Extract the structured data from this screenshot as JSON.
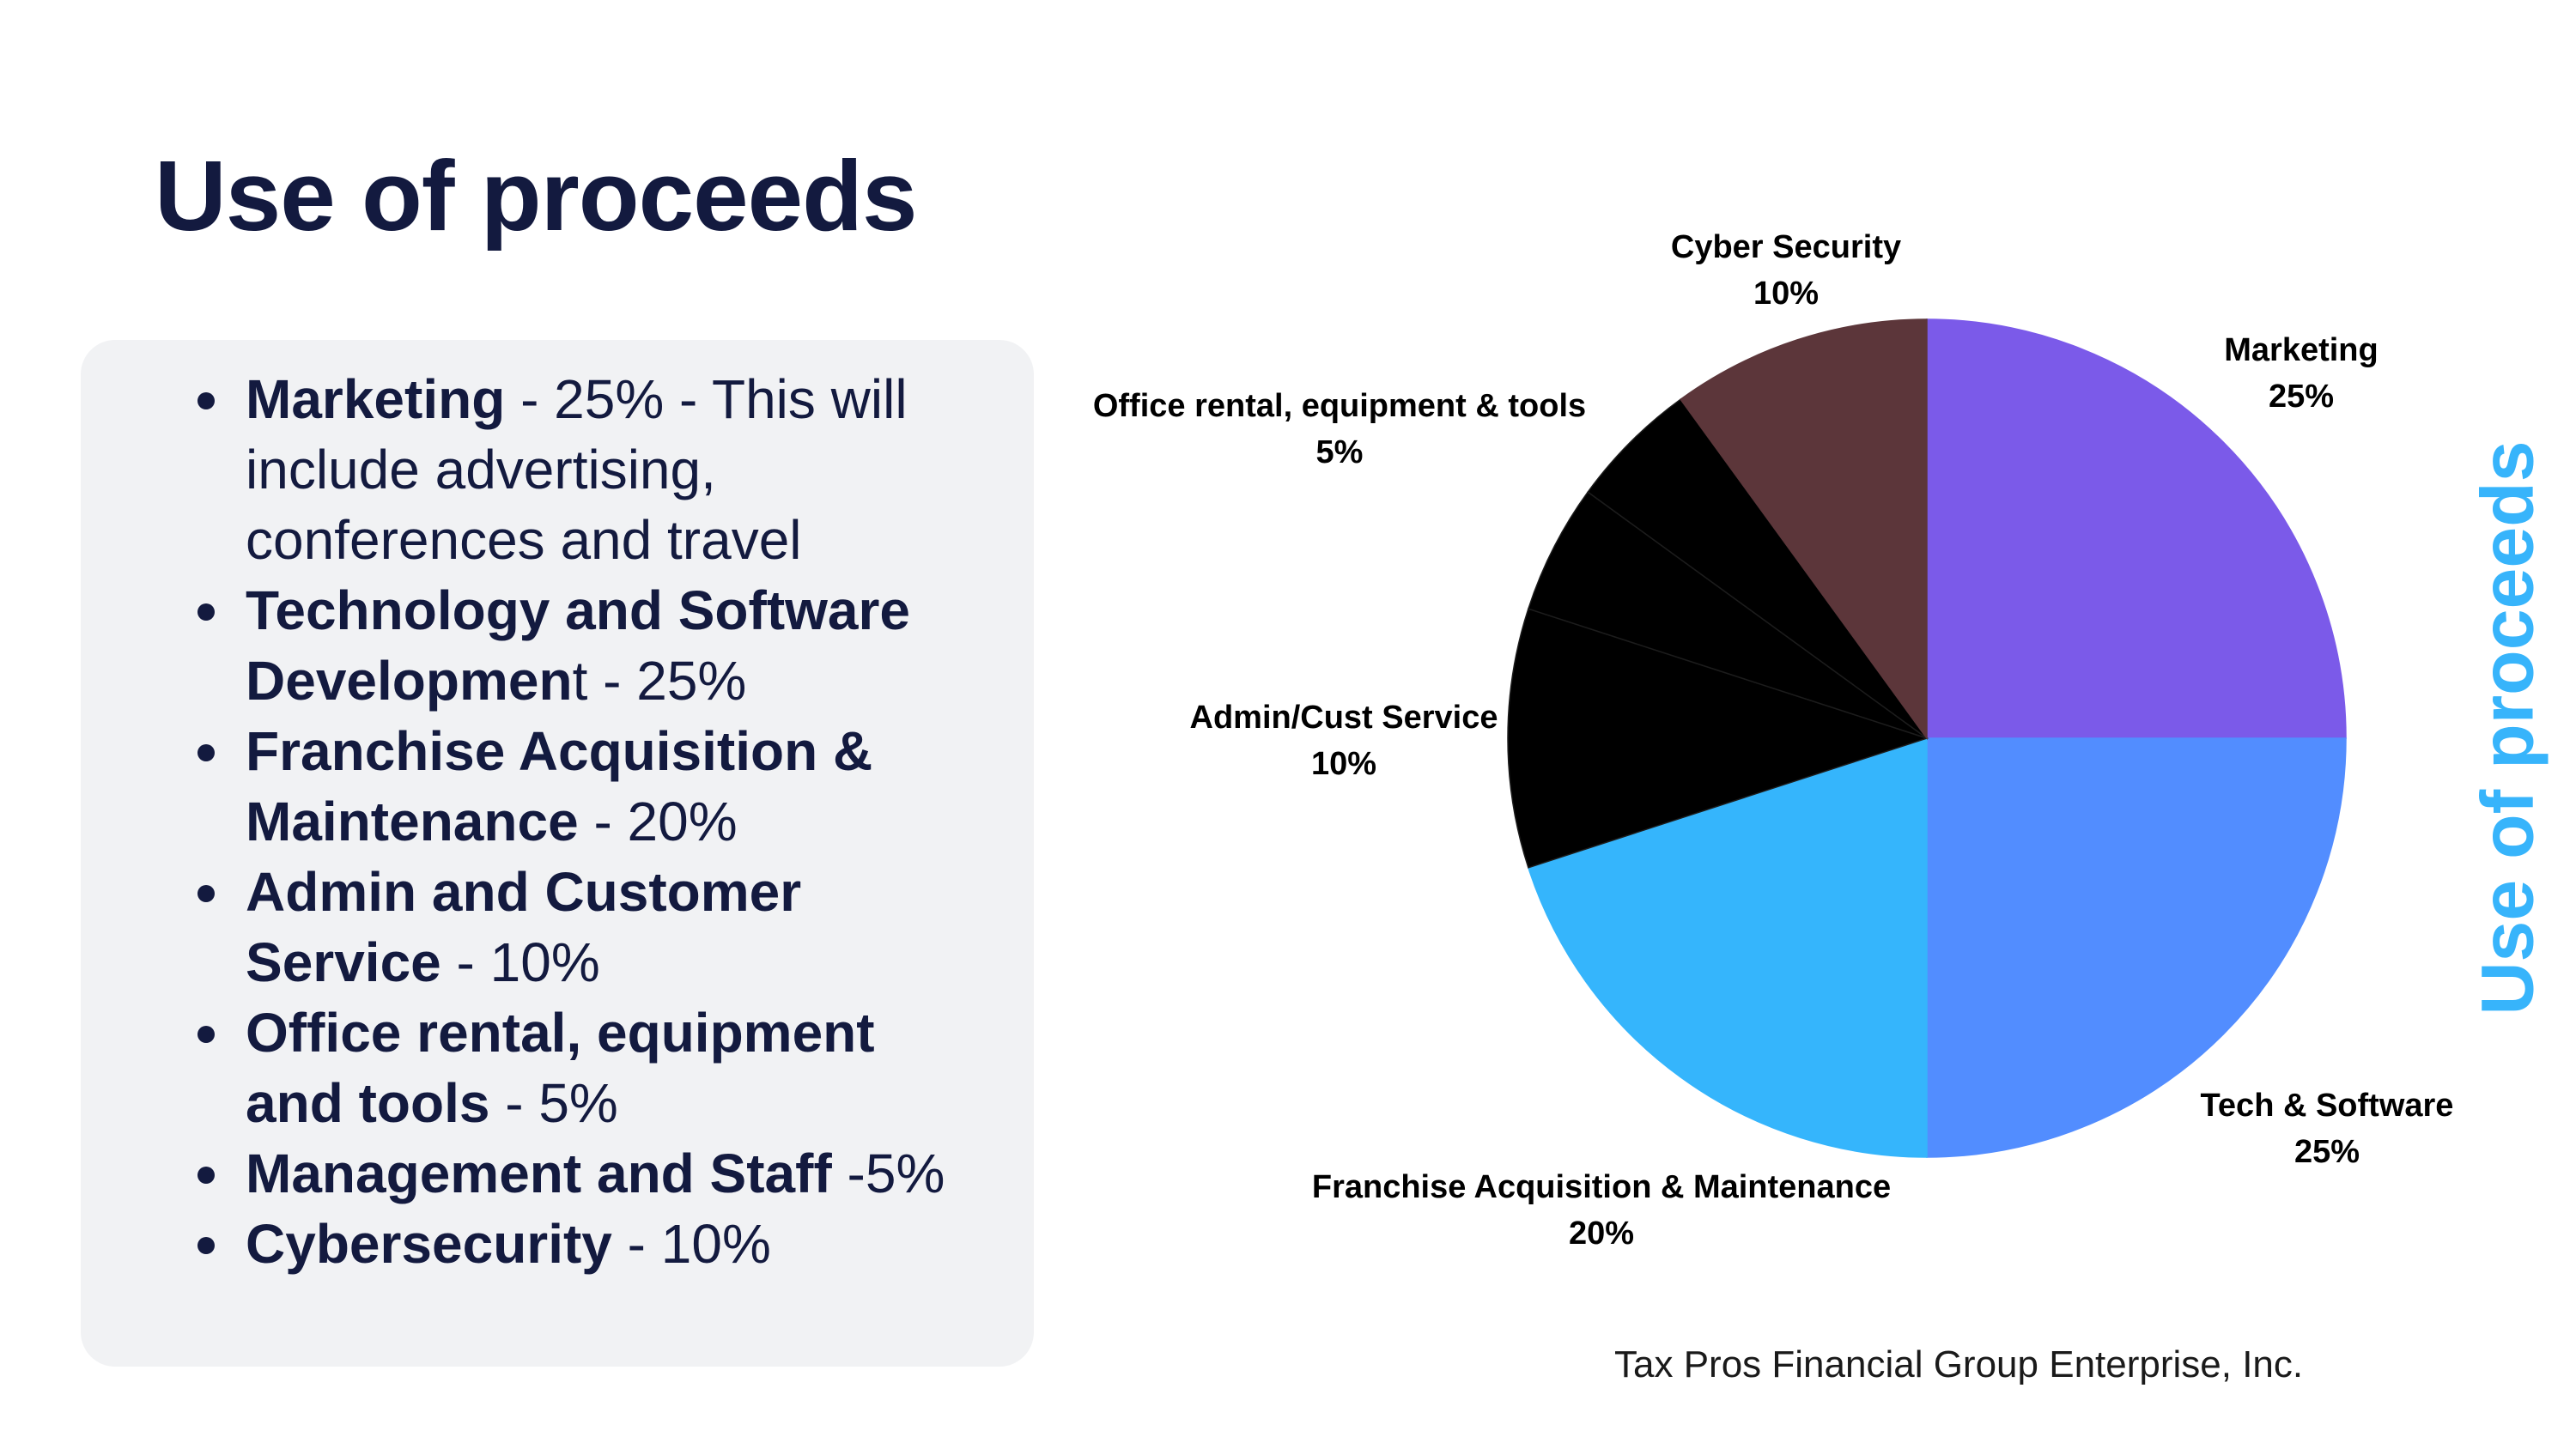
{
  "title": "Use of proceeds",
  "side_title": "Use of proceeds",
  "footer": "Tax Pros Financial Group Enterprise, Inc.",
  "bullets": [
    {
      "bold": "Marketing",
      "rest": " - 25% - This will include advertising, conferences and travel"
    },
    {
      "bold": "Technology and Software Developmen",
      "rest": "t - 25%"
    },
    {
      "bold": "Franchise Acquisition & Maintenance",
      "rest": " - 20%"
    },
    {
      "bold": "Admin and Customer Service",
      "rest": " - 10%"
    },
    {
      "bold": "Office rental, equipment and tools",
      "rest": " - 5%"
    },
    {
      "bold": "Management and Staff",
      "rest": " -5%"
    },
    {
      "bold": "Cybersecurity",
      "rest": " - 10%"
    }
  ],
  "chart_data": {
    "type": "pie",
    "slices": [
      {
        "label": "Marketing",
        "value": 25,
        "value_label": "25%",
        "color": "#7b5ae9"
      },
      {
        "label": "Tech & Software",
        "value": 25,
        "value_label": "25%",
        "color": "#528dff"
      },
      {
        "label": "Franchise Acquisition & Maintenance",
        "value": 20,
        "value_label": "20%",
        "color": "#35b5fc"
      },
      {
        "label": "Admin/Cust Service",
        "value": 10,
        "value_label": "10%",
        "color": "#000000"
      },
      {
        "label": "",
        "value": 5,
        "value_label": "",
        "color": "#000000"
      },
      {
        "label": "Office rental, equipment & tools",
        "value": 5,
        "value_label": "5%",
        "color": "#000000"
      },
      {
        "label": "Cyber Security",
        "value": 10,
        "value_label": "10%",
        "color": "#5c363a"
      }
    ]
  }
}
